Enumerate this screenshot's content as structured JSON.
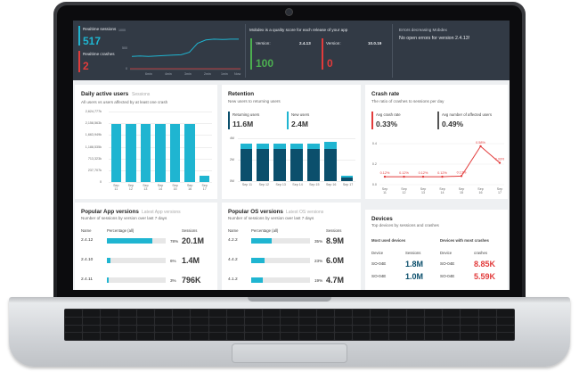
{
  "colors": {
    "accent": "#1fb5d1",
    "dark_teal": "#0b4f6c",
    "alert": "#e23b3b",
    "positive": "#4caf50",
    "topbar": "#323a45"
  },
  "realtime": {
    "sessions_label": "Realtime sessions",
    "sessions_value": "517",
    "crashes_label": "Realtime crashes",
    "crashes_value": "2",
    "y_ticks": [
      "1000",
      "500",
      "0"
    ],
    "x_ticks": [
      "6min",
      "4min",
      "3min",
      "2min",
      "1min",
      "Now"
    ],
    "sessions_trend": [
      0.3,
      0.31,
      0.3,
      0.31,
      0.32,
      0.33,
      0.34,
      0.4,
      0.62,
      0.7,
      0.72,
      0.71,
      0.72,
      0.72
    ]
  },
  "quality": {
    "title": "Mobdex is a quality score for each release of your app",
    "version_label": "Version:",
    "left_version": "2.4.13",
    "left_score": "100",
    "right_version": "10.0.19",
    "right_score": "0"
  },
  "errors": {
    "title": "Errors decreasing Mobdex",
    "message": "No open errors for version 2.4.13!"
  },
  "dau": {
    "title": "Daily active users",
    "tab": "Sessions",
    "subtitle": "All users vs users affected by at least one crash",
    "y_ticks": [
      "2,624,777k",
      "2,158,563k",
      "1,663,949k",
      "1,188,535k",
      "713,323k",
      "237,707k",
      "0"
    ],
    "x_ticks": [
      "Sep\n11",
      "Sep\n12",
      "Sep\n13",
      "Sep\n14",
      "Sep\n15",
      "Sep\n16",
      "Sep\n17"
    ]
  },
  "retention": {
    "title": "Retention",
    "subtitle": "New users to returning users",
    "returning_label": "Returning users",
    "returning_value": "11.6M",
    "new_label": "New users",
    "new_value": "2.4M",
    "y_ticks": [
      "4M",
      "2M",
      "0M"
    ],
    "x_ticks": [
      "Sep 11",
      "Sep 12",
      "Sep 13",
      "Sep 14",
      "Sep 15",
      "Sep 16",
      "Sep 17"
    ]
  },
  "crash_rate": {
    "title": "Crash rate",
    "subtitle": "The ratio of crashes to sessions per day",
    "avg_label": "Avg crash rate",
    "avg_value": "0.33%",
    "affected_label": "Avg number of affected users",
    "affected_value": "0.49%",
    "y_ticks": [
      "0.4",
      "0.2",
      "0.0"
    ],
    "x_ticks": [
      "Sep\n11",
      "Sep\n12",
      "Sep\n13",
      "Sep\n14",
      "Sep\n15",
      "Sep\n16",
      "Sep\n17"
    ],
    "points": [
      "0.12%",
      "0.12%",
      "0.12%",
      "0.12%",
      "0.13%",
      "0.58%",
      "0.33%"
    ]
  },
  "app_versions": {
    "title": "Popular App versions",
    "tab": "Latest App versions",
    "subtitle": "Number of sessions by version over last 7 days",
    "col_name": "Name",
    "col_pct": "Percentage (all)",
    "col_sessions": "Sessions",
    "rows": [
      {
        "name": "2.4.12",
        "pct": "78%",
        "sessions": "20.1M",
        "fill": 0.78
      },
      {
        "name": "2.4.10",
        "pct": "6%",
        "sessions": "1.4M",
        "fill": 0.06
      },
      {
        "name": "2.4.11",
        "pct": "3%",
        "sessions": "796K",
        "fill": 0.03
      }
    ]
  },
  "os_versions": {
    "title": "Popular OS versions",
    "tab": "Latest OS versions",
    "subtitle": "Number of sessions by version over last 7 days",
    "col_name": "Name",
    "col_pct": "Percentage (all)",
    "col_sessions": "Sessions",
    "rows": [
      {
        "name": "4.2.2",
        "pct": "35%",
        "sessions": "8.9M",
        "fill": 0.35
      },
      {
        "name": "4.4.2",
        "pct": "23%",
        "sessions": "6.0M",
        "fill": 0.23
      },
      {
        "name": "4.1.2",
        "pct": "19%",
        "sessions": "4.7M",
        "fill": 0.19
      }
    ]
  },
  "devices": {
    "title": "Devices",
    "subtitle": "Top devices by sessions and crashes",
    "used_title": "Most used devices",
    "crash_title": "Devices with most crashes",
    "col_device": "Device",
    "col_sessions": "Sessions",
    "col_crashes": "crashes",
    "used_rows": [
      {
        "device": "SO-04E",
        "value": "1.8M"
      },
      {
        "device": "SO-04E",
        "value": "1.0M"
      }
    ],
    "crash_rows": [
      {
        "device": "SO-04E",
        "value": "8.85K"
      },
      {
        "device": "SO-04E",
        "value": "5.59K"
      }
    ]
  }
}
